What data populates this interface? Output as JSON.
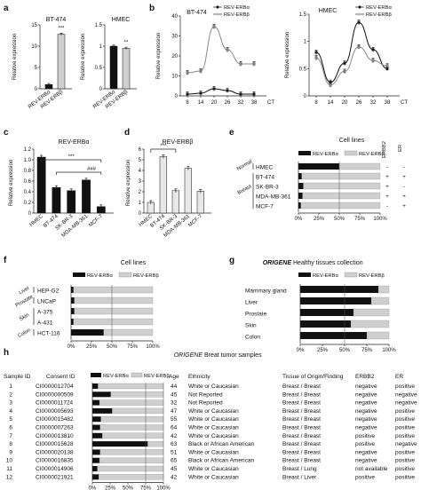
{
  "panels": {
    "a": "a",
    "b": "b",
    "c": "c",
    "d": "d",
    "e": "e",
    "f": "f",
    "g": "g",
    "h": "h"
  },
  "colors": {
    "alpha": "#111111",
    "beta": "#cfcfcf",
    "beta_line": "#888888"
  },
  "chart_data": [
    {
      "id": "a1",
      "type": "bar",
      "title": "BT-474",
      "ylabel": "Relative expression",
      "categories": [
        "REV-ERBα",
        "REV-ERBβ"
      ],
      "values": [
        1,
        12.8
      ],
      "ylim": [
        0,
        15
      ],
      "yticks": [
        "0",
        "5",
        "10",
        "15"
      ],
      "annotation": "***"
    },
    {
      "id": "a2",
      "type": "bar",
      "title": "HMEC",
      "ylabel": "Relative expression",
      "categories": [
        "REV-ERBα",
        "REV-ERBβ"
      ],
      "values": [
        1,
        0.95
      ],
      "ylim": [
        0,
        1.5
      ],
      "yticks": [
        "0",
        "0.5",
        "1",
        "1.5"
      ],
      "annotation": "**"
    },
    {
      "id": "b1",
      "type": "line",
      "title": "BT-474",
      "ylabel": "Relative expression",
      "x": [
        8,
        14,
        20,
        26,
        32,
        38
      ],
      "xunit": "CT",
      "ylim": [
        0,
        45
      ],
      "yticks": [
        "0",
        "10",
        "20",
        "30",
        "40"
      ],
      "series": [
        {
          "name": "REV-ERBα",
          "values": [
            1,
            1.5,
            4,
            3,
            1,
            1
          ]
        },
        {
          "name": "REV-ERBβ",
          "values": [
            13,
            14,
            39,
            26,
            18,
            18
          ]
        }
      ]
    },
    {
      "id": "b2",
      "type": "line",
      "title": "HMEC",
      "ylabel": "Relative expression",
      "x": [
        8,
        14,
        20,
        26,
        32,
        38
      ],
      "xunit": "CT",
      "ylim": [
        0,
        1.5
      ],
      "yticks": [
        "0",
        "0.5",
        "1",
        "1.5"
      ],
      "series": [
        {
          "name": "REV-ERBα",
          "values": [
            0.8,
            0.25,
            0.6,
            1.35,
            0.85,
            0.5
          ]
        },
        {
          "name": "REV-ERBβ",
          "values": [
            0.7,
            0.2,
            0.45,
            0.9,
            0.65,
            0.55
          ]
        }
      ]
    },
    {
      "id": "c",
      "type": "bar",
      "title": "REV-ERBα",
      "ylabel": "Relative expression",
      "categories": [
        "HMEC",
        "BT-474",
        "SK-BR-3",
        "MDA-MB-361",
        "MCF-7"
      ],
      "values": [
        1.05,
        0.48,
        0.42,
        0.62,
        0.12
      ],
      "ylim": [
        0,
        1.2
      ],
      "yticks": [
        "0",
        "0.2",
        "0.4",
        "0.6",
        "0.8",
        "1.0",
        "1.2"
      ],
      "annotations": [
        "***",
        "###"
      ]
    },
    {
      "id": "d",
      "type": "bar",
      "title": "REV-ERBβ",
      "ylabel": "Relative expression",
      "categories": [
        "HMEC",
        "BT-474",
        "SK-BR-3",
        "MDA-MB-361",
        "MCF-7"
      ],
      "values": [
        1,
        5.3,
        2.1,
        4.2,
        2.05
      ],
      "ylim": [
        0,
        6
      ],
      "yticks": [
        "0",
        "1",
        "2",
        "3",
        "4",
        "5",
        "6"
      ],
      "annotations": [
        "***"
      ]
    },
    {
      "id": "e",
      "type": "bar",
      "title": "Cell lines",
      "legend": [
        "REV-ERBα",
        "REV-ERBβ"
      ],
      "xticks": [
        "0%",
        "25%",
        "50%",
        "75%",
        "100%"
      ],
      "extra_headers": [
        "ERBB2",
        "ER"
      ],
      "groups": [
        {
          "label": "Normal",
          "rows": [
            0
          ]
        },
        {
          "label": "Breast",
          "rows": [
            1,
            2,
            3,
            4
          ]
        }
      ],
      "categories": [
        "HMEC",
        "BT-474",
        "SK-BR-3",
        "MDA-MB-361",
        "MCF-7"
      ],
      "alpha_pct": [
        50,
        4,
        6,
        5,
        3
      ],
      "erbb2": [
        "-",
        "+",
        "+",
        "+",
        "-"
      ],
      "er": [
        "-",
        "+",
        "-",
        "+",
        "+"
      ]
    },
    {
      "id": "f",
      "type": "bar",
      "title": "Cell lines",
      "legend": [
        "REV-ERBα",
        "REV-ERBβ"
      ],
      "xticks": [
        "0%",
        "25%",
        "50%",
        "75%",
        "100%"
      ],
      "groups": [
        {
          "label": "Liver",
          "rows": [
            0
          ]
        },
        {
          "label": "Prostate",
          "rows": [
            1
          ]
        },
        {
          "label": "Skin",
          "rows": [
            2,
            3
          ]
        },
        {
          "label": "Colon",
          "rows": [
            4
          ]
        }
      ],
      "categories": [
        "HEP-G2",
        "LNCaP",
        "A-375",
        "A-431",
        "HCT-116"
      ],
      "alpha_pct": [
        3,
        4,
        4,
        3,
        40
      ]
    },
    {
      "id": "g",
      "type": "bar",
      "title_italic": "ORIGENE",
      "title": "Healthy tissues collection",
      "legend": [
        "REV-ERBα",
        "REV-ERBβ"
      ],
      "xticks": [
        "0%",
        "25%",
        "50%",
        "75%",
        "100%"
      ],
      "categories": [
        "Mammary gland",
        "Liver",
        "Prostate",
        "Skin",
        "Colon"
      ],
      "alpha_pct": [
        88,
        80,
        60,
        57,
        75
      ]
    },
    {
      "id": "h",
      "type": "table",
      "title_italic": "ORIGENE",
      "title": "Breat tumor samples",
      "legend": [
        "REV-ERBα",
        "REV-ERBβ"
      ],
      "xticks": [
        "0%",
        "25%",
        "50%",
        "75%",
        "100%"
      ],
      "headers": [
        "Sample ID",
        "Consent ID",
        "Age",
        "Ethnicity",
        "Tissue of Origin/Finding",
        "ERBB2",
        "ER"
      ],
      "rows": [
        {
          "sid": "1",
          "cid": "CI0000012704",
          "alpha": 8,
          "age": "44",
          "eth": "White or Caucasian",
          "tissue": "Breast / Breast",
          "erbb2": "negative",
          "er": "positive"
        },
        {
          "sid": "2",
          "cid": "CI0000000509",
          "alpha": 26,
          "age": "45",
          "eth": "Not Reported",
          "tissue": "Breast / Breast",
          "erbb2": "negative",
          "er": "negative"
        },
        {
          "sid": "3",
          "cid": "CI0000011724",
          "alpha": 10,
          "age": "32",
          "eth": "Not Reported",
          "tissue": "Breast / Breast",
          "erbb2": "negative",
          "er": "negative"
        },
        {
          "sid": "4",
          "cid": "CI0000005693",
          "alpha": 28,
          "age": "47",
          "eth": "White or Caucasian",
          "tissue": "Breast / Breast",
          "erbb2": "negative",
          "er": "positive"
        },
        {
          "sid": "5",
          "cid": "CI0000015482",
          "alpha": 12,
          "age": "55",
          "eth": "White or Caucasian",
          "tissue": "Breast / Breast",
          "erbb2": "negative",
          "er": "positive"
        },
        {
          "sid": "6",
          "cid": "CI0000007263",
          "alpha": 11,
          "age": "64",
          "eth": "White or Caucasian",
          "tissue": "Breast / Breast",
          "erbb2": "negative",
          "er": "positive"
        },
        {
          "sid": "7",
          "cid": "CI0000013810",
          "alpha": 14,
          "age": "42",
          "eth": "White or Caucasian",
          "tissue": "Breast / Breast",
          "erbb2": "positive",
          "er": "positive"
        },
        {
          "sid": "8",
          "cid": "CI0000015628",
          "alpha": 78,
          "age": "63",
          "eth": "Black or African American",
          "tissue": "Breast / Breast",
          "erbb2": "positive",
          "er": "negative"
        },
        {
          "sid": "9",
          "cid": "CI0000020138",
          "alpha": 11,
          "age": "51",
          "eth": "White or Caucasian",
          "tissue": "Breast / Breast",
          "erbb2": "negative",
          "er": "positive"
        },
        {
          "sid": "10",
          "cid": "CI0000016835",
          "alpha": 10,
          "age": "65",
          "eth": "Black or African American",
          "tissue": "Breast / Breast",
          "erbb2": "negative",
          "er": "positive"
        },
        {
          "sid": "11",
          "cid": "CI0000014906",
          "alpha": 7,
          "age": "45",
          "eth": "White or Caucasian",
          "tissue": "Breast / Lung",
          "erbb2": "not available",
          "er": "positive"
        },
        {
          "sid": "12",
          "cid": "CI0000021921",
          "alpha": 9,
          "age": "42",
          "eth": "White or Caucasian",
          "tissue": "Breast / Liver",
          "erbb2": "positive",
          "er": "positive"
        }
      ]
    }
  ]
}
